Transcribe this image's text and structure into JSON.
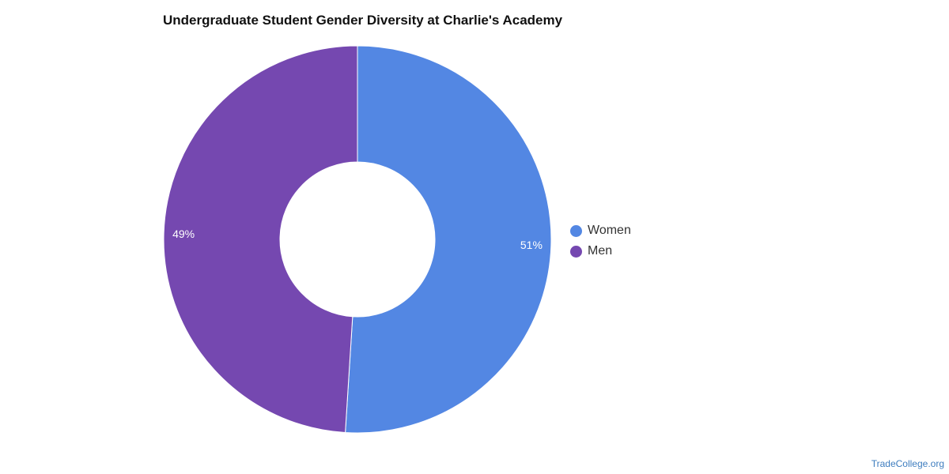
{
  "chart_data": {
    "type": "pie",
    "variant": "donut",
    "title": "Undergraduate Student Gender Diversity at Charlie's Academy",
    "slices": [
      {
        "label": "Women",
        "value": 51,
        "display": "51%",
        "color": "#5387e3"
      },
      {
        "label": "Men",
        "value": 49,
        "display": "49%",
        "color": "#7548b0"
      }
    ],
    "legend_position": "right"
  },
  "source": {
    "label": "TradeCollege.org"
  }
}
